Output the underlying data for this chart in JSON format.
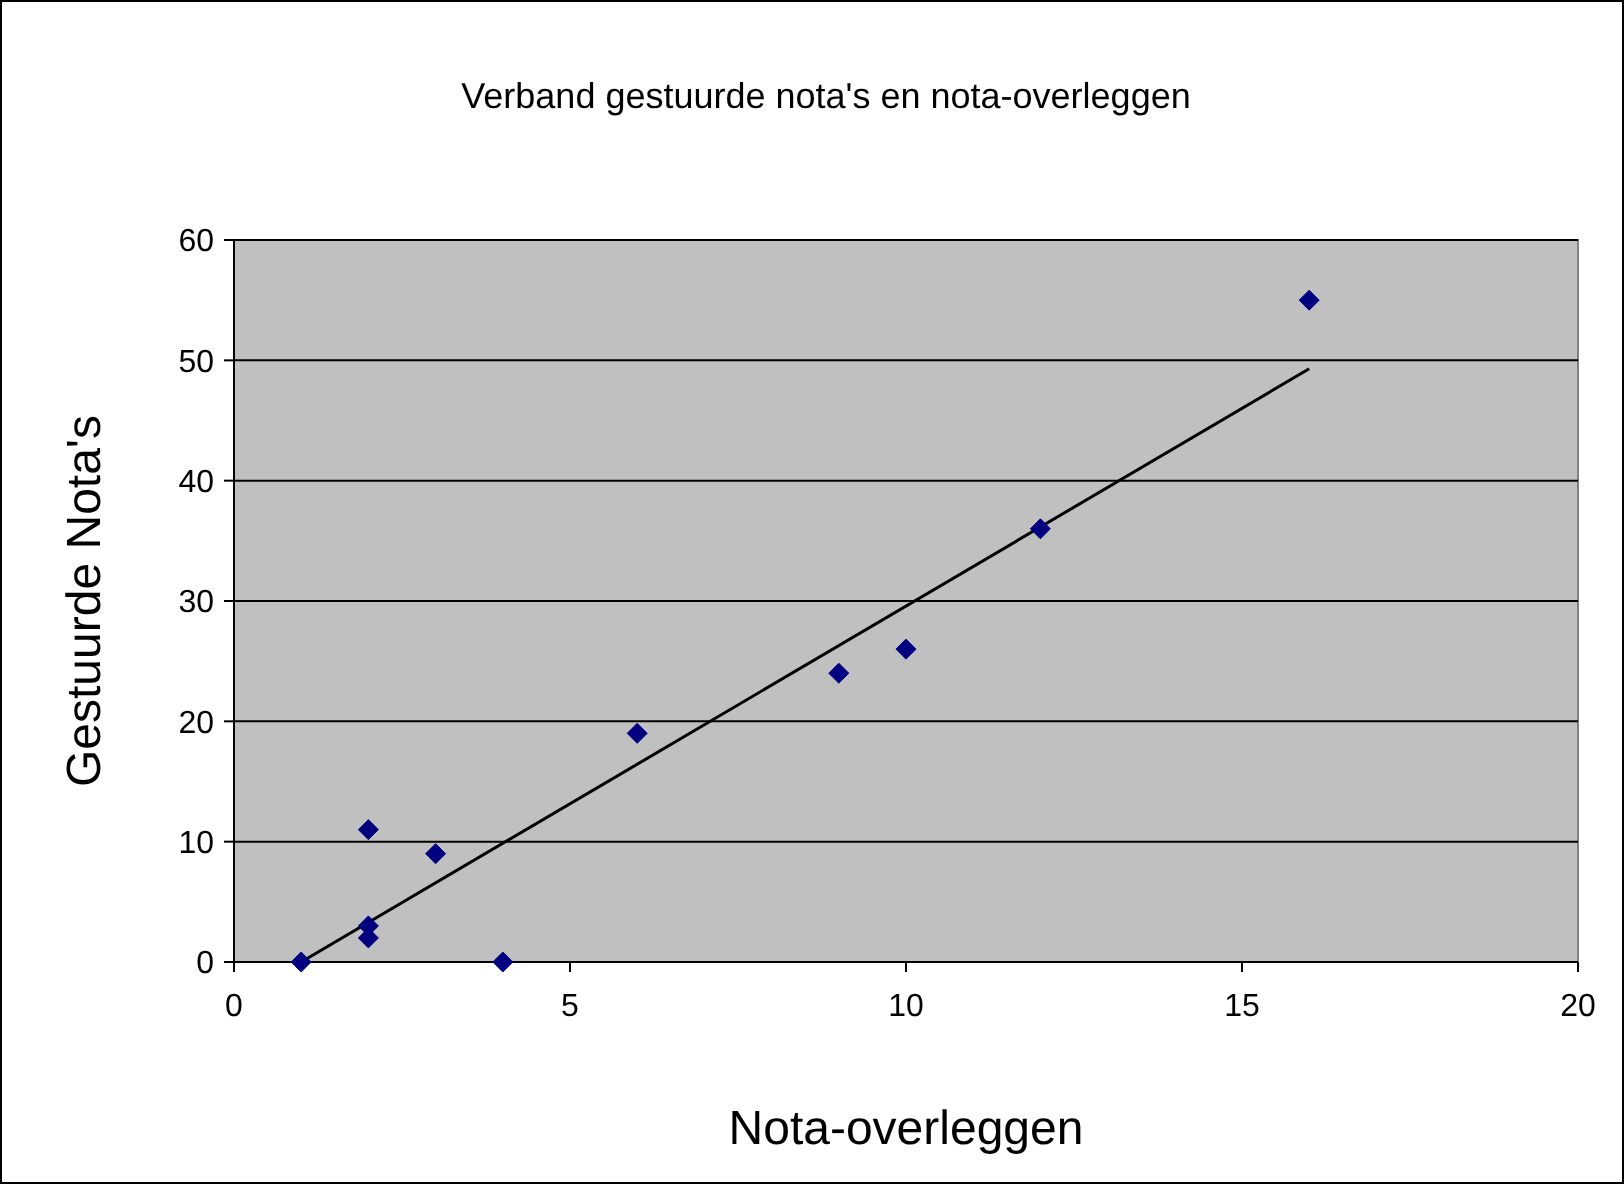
{
  "chart_data": {
    "type": "scatter",
    "title": "Verband gestuurde nota's en nota-overleggen",
    "xlabel": "Nota-overleggen",
    "ylabel": "Gestuurde Nota's",
    "series": [
      {
        "color": "#000080",
        "marker": "diamond",
        "x": [
          1,
          2,
          2,
          2,
          3,
          4,
          6,
          9,
          10,
          12,
          16
        ],
        "values": [
          0,
          11,
          3,
          2,
          9,
          0,
          19,
          24,
          26,
          36,
          55
        ]
      },
      {
        "type": "line",
        "color": "#000000",
        "x": [
          1,
          16
        ],
        "values": [
          0,
          49.3
        ]
      }
    ],
    "xlim": [
      0,
      20
    ],
    "xticks": [
      0,
      5,
      10,
      15,
      20
    ],
    "ylim": [
      0,
      60
    ],
    "yticks": [
      0,
      10,
      20,
      30,
      40,
      50,
      60
    ],
    "grid": "y"
  }
}
